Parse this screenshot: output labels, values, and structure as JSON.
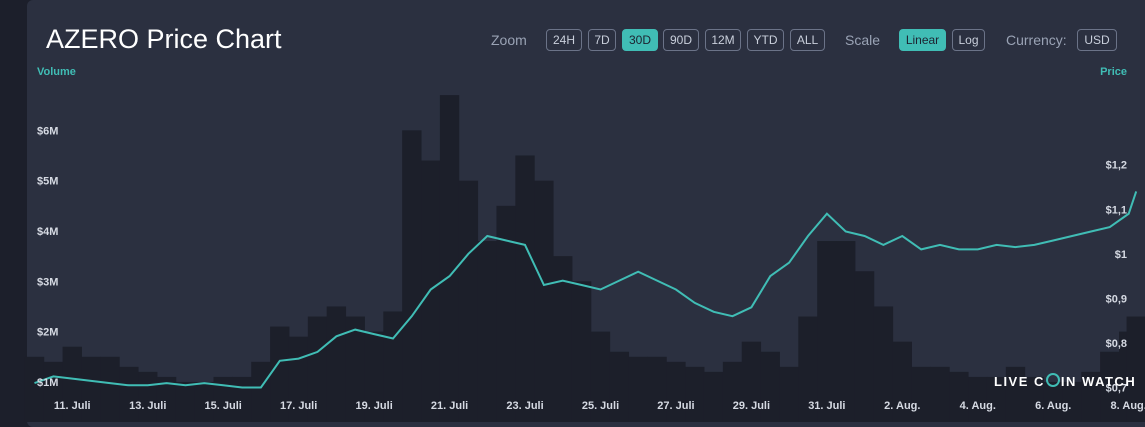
{
  "header": {
    "title": "AZERO Price Chart",
    "zoom_label": "Zoom",
    "scale_label": "Scale",
    "currency_label": "Currency:",
    "zoom_options": [
      "24H",
      "7D",
      "30D",
      "90D",
      "12M",
      "YTD",
      "ALL"
    ],
    "zoom_selected": "30D",
    "scale_options": [
      "Linear",
      "Log"
    ],
    "scale_selected": "Linear",
    "currency": "USD"
  },
  "watermark": {
    "pre": "LIVE C",
    "post": "IN WATCH"
  },
  "colors": {
    "background": "#2b3040",
    "price_line": "#40bdb5",
    "volume_bars": "#1c1f2a",
    "accent": "#40bdb5"
  },
  "chart_data": {
    "type": "line",
    "left_axis_title": "Volume",
    "right_axis_title": "Price",
    "x_ticks": [
      "11. Juli",
      "13. Juli",
      "15. Juli",
      "17. Juli",
      "19. Juli",
      "21. Juli",
      "23. Juli",
      "25. Juli",
      "27. Juli",
      "29. Juli",
      "31. Juli",
      "2. Aug.",
      "4. Aug.",
      "6. Aug.",
      "8. Aug."
    ],
    "volume_ticks": [
      "$1M",
      "$2M",
      "$3M",
      "$4M",
      "$5M",
      "$6M"
    ],
    "price_ticks": [
      "$0,7",
      "$0,8",
      "$0,9",
      "$1",
      "$1,1",
      "$1,2"
    ],
    "volume_range": [
      0.8,
      7
    ],
    "price_range": [
      0.69,
      1.39
    ],
    "x_range": [
      9.8,
      39.3
    ],
    "grid": false,
    "series": [
      {
        "name": "Price",
        "style": "line",
        "x": [
          10,
          10.5,
          11,
          11.5,
          12,
          12.5,
          13,
          13.5,
          14,
          14.5,
          15,
          15.5,
          16,
          16.5,
          17,
          17.5,
          18,
          18.5,
          19,
          19.5,
          20,
          20.5,
          21,
          21.5,
          22,
          22.5,
          23,
          23.5,
          24,
          24.5,
          25,
          25.5,
          26,
          26.5,
          27,
          27.5,
          28,
          28.5,
          29,
          29.5,
          30,
          30.5,
          31,
          31.5,
          32,
          32.5,
          33,
          33.5,
          34,
          34.5,
          35,
          35.5,
          36,
          36.5,
          37,
          37.5,
          38,
          38.5,
          39,
          39.2
        ],
        "values": [
          0.71,
          0.725,
          0.72,
          0.715,
          0.71,
          0.705,
          0.705,
          0.71,
          0.705,
          0.71,
          0.705,
          0.7,
          0.7,
          0.76,
          0.765,
          0.78,
          0.815,
          0.83,
          0.82,
          0.81,
          0.86,
          0.92,
          0.95,
          1.0,
          1.04,
          1.03,
          1.02,
          0.93,
          0.94,
          0.93,
          0.92,
          0.94,
          0.96,
          0.94,
          0.92,
          0.89,
          0.87,
          0.86,
          0.88,
          0.95,
          0.98,
          1.04,
          1.09,
          1.05,
          1.04,
          1.02,
          1.04,
          1.01,
          1.02,
          1.01,
          1.01,
          1.02,
          1.015,
          1.02,
          1.03,
          1.04,
          1.05,
          1.06,
          1.09,
          1.14
        ],
        "note": ""
      },
      {
        "name": "Volume",
        "style": "bar",
        "x": [
          10,
          10.5,
          11,
          11.5,
          12,
          12.5,
          13,
          13.5,
          14,
          14.5,
          15,
          15.5,
          16,
          16.5,
          17,
          17.5,
          18,
          18.5,
          19,
          19.5,
          20,
          20.5,
          21,
          21.5,
          22,
          22.5,
          23,
          23.5,
          24,
          24.5,
          25,
          25.5,
          26,
          26.5,
          27,
          27.5,
          28,
          28.5,
          29,
          29.5,
          30,
          30.5,
          31,
          31.5,
          32,
          32.5,
          33,
          33.5,
          34,
          34.5,
          35,
          35.5,
          36,
          36.5,
          37,
          37.5,
          38,
          38.5,
          39,
          39.2
        ],
        "values": [
          1.5,
          1.4,
          1.7,
          1.5,
          1.5,
          1.3,
          1.2,
          1.1,
          1.0,
          1.0,
          1.1,
          1.1,
          1.4,
          2.1,
          1.9,
          2.3,
          2.5,
          2.3,
          2.0,
          2.4,
          6.0,
          5.4,
          6.7,
          5.0,
          3.8,
          4.5,
          5.5,
          5.0,
          3.5,
          3.0,
          2.0,
          1.6,
          1.5,
          1.5,
          1.4,
          1.3,
          1.2,
          1.4,
          1.8,
          1.6,
          1.3,
          2.3,
          3.8,
          3.8,
          3.2,
          2.5,
          1.8,
          1.3,
          1.3,
          1.2,
          1.1,
          1.1,
          1.3,
          1.1,
          1.0,
          1.0,
          1.2,
          1.6,
          2.0,
          2.3
        ]
      }
    ]
  }
}
